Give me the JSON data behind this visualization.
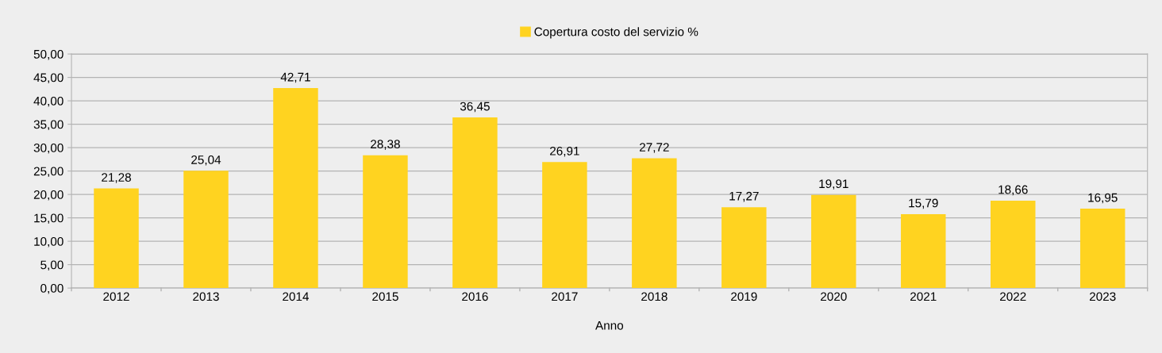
{
  "chart_data": {
    "type": "bar",
    "xlabel": "Anno",
    "categories": [
      "2012",
      "2013",
      "2014",
      "2015",
      "2016",
      "2017",
      "2018",
      "2019",
      "2020",
      "2021",
      "2022",
      "2023"
    ],
    "series": [
      {
        "name": "Copertura costo del servizio %",
        "color": "#ffd320",
        "values": [
          21.28,
          25.04,
          42.71,
          28.38,
          36.45,
          26.91,
          27.72,
          17.27,
          19.91,
          15.79,
          18.66,
          16.95
        ],
        "value_labels": [
          "21,28",
          "25,04",
          "42,71",
          "28,38",
          "36,45",
          "26,91",
          "27,72",
          "17,27",
          "19,91",
          "15,79",
          "18,66",
          "16,95"
        ]
      }
    ],
    "ylim": [
      0,
      50
    ],
    "yticks": [
      {
        "value": 0,
        "label": "0,00"
      },
      {
        "value": 5,
        "label": "5,00"
      },
      {
        "value": 10,
        "label": "10,00"
      },
      {
        "value": 15,
        "label": "15,00"
      },
      {
        "value": 20,
        "label": "20,00"
      },
      {
        "value": 25,
        "label": "25,00"
      },
      {
        "value": 30,
        "label": "30,00"
      },
      {
        "value": 35,
        "label": "35,00"
      },
      {
        "value": 40,
        "label": "40,00"
      },
      {
        "value": 45,
        "label": "45,00"
      },
      {
        "value": 50,
        "label": "50,00"
      }
    ],
    "grid": "y",
    "legend": "top"
  }
}
